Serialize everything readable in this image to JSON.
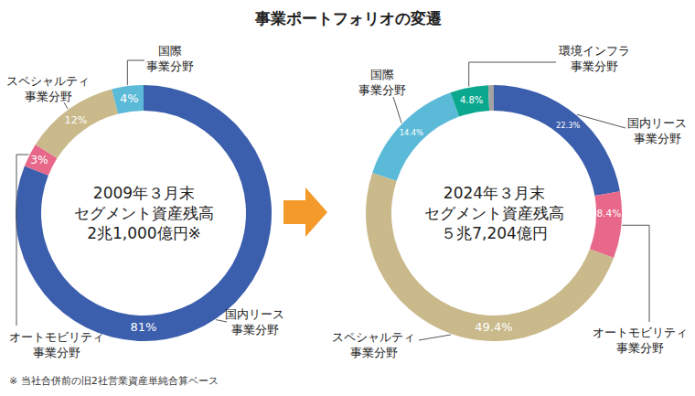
{
  "title": "事業ポートフォリオの変遷",
  "footnote": "※ 当社合併前の旧2社営業資産単純合算ベース",
  "chart_data": [
    {
      "type": "pie",
      "title": "2009年３月末\nセグメント資産残高\n2兆1,000億円※",
      "categories": [
        "国内リース\n事業分野",
        "オートモビリティ\n事業分野",
        "スペシャルティ\n事業分野",
        "国際\n事業分野"
      ],
      "values": [
        81,
        3,
        12,
        4
      ],
      "value_labels": [
        "81%",
        "3%",
        "12%",
        "4%"
      ],
      "colors": [
        "#3b5ead",
        "#e8688a",
        "#c9b98b",
        "#5bbad8"
      ],
      "data_labels": true
    },
    {
      "type": "pie",
      "title": "2024年３月末\nセグメント資産残高\n５兆7,204億円",
      "categories": [
        "国内リース\n事業分野",
        "オートモビリティ\n事業分野",
        "スペシャルティ\n事業分野",
        "国際\n事業分野",
        "環境インフラ\n事業分野",
        null
      ],
      "values": [
        22.3,
        8.4,
        49.4,
        14.4,
        4.8,
        0.7
      ],
      "value_labels": [
        "22.3%",
        "8.4%",
        "49.4%",
        "14.4%",
        "4.8%",
        null
      ],
      "colors": [
        "#3b5ead",
        "#e8688a",
        "#c9b98b",
        "#5bbad8",
        "#0aa88f",
        "#a3a3a3"
      ],
      "data_labels": true
    }
  ]
}
